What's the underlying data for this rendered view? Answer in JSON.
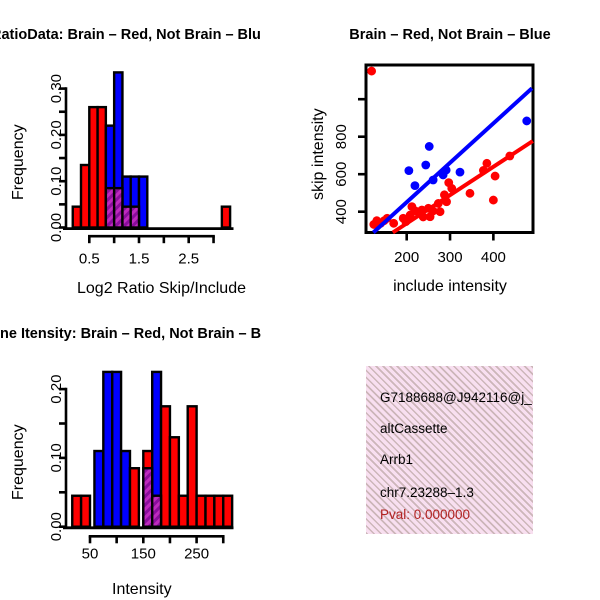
{
  "background": "#FFFFFF",
  "colors": {
    "red": "#FF0000",
    "blue": "#0000FF",
    "black": "#000000",
    "overlap_fill": "#BE29BE",
    "overlap_stripe": "#8A0D9C",
    "pval_red": "#B22222",
    "info_box_bg": "#F8DFF0",
    "info_box_stripe": "#CFC0B6"
  },
  "panels": {
    "info_box": {
      "junction_id": "G7188688@J942116@j_",
      "event_type": "altCassette",
      "gene": "Arrb1",
      "locus": "chr7.23288–1.3",
      "pval": "Pval: 0.000000"
    }
  },
  "chart_data": [
    {
      "id": "ratio_histogram",
      "type": "bar",
      "title": "RatioData: Brain – Red, Not Brain – Blu",
      "xlabel": "Log2 Ratio Skip/Include",
      "ylabel": "Frequency",
      "xlim": [
        0.05,
        3.4
      ],
      "ylim": [
        0,
        0.335
      ],
      "legend": "Brain = red bars, Not Brain = blue bars, overlap = purple hatched",
      "x_ticks": [
        {
          "v": 0.5,
          "label": "0.5"
        },
        {
          "v": 1.0,
          "label": ""
        },
        {
          "v": 1.5,
          "label": "1.5"
        },
        {
          "v": 2.0,
          "label": ""
        },
        {
          "v": 2.5,
          "label": "2.5"
        },
        {
          "v": 3.0,
          "label": ""
        }
      ],
      "y_ticks": [
        {
          "v": 0,
          "label": "0.00"
        },
        {
          "v": 0.05,
          "label": ""
        },
        {
          "v": 0.1,
          "label": "0.10"
        },
        {
          "v": 0.15,
          "label": ""
        },
        {
          "v": 0.2,
          "label": "0.20"
        },
        {
          "v": 0.25,
          "label": ""
        },
        {
          "v": 0.3,
          "label": "0.30"
        }
      ],
      "bars": [
        {
          "x0": 0.167,
          "x1": 0.333,
          "h": 0.045,
          "color": "red"
        },
        {
          "x0": 0.333,
          "x1": 0.5,
          "h": 0.135,
          "color": "red"
        },
        {
          "x0": 0.5,
          "x1": 0.667,
          "h": 0.26,
          "color": "red"
        },
        {
          "x0": 0.667,
          "x1": 0.833,
          "h": 0.26,
          "color": "red"
        },
        {
          "x0": 0.833,
          "x1": 1.0,
          "h": 0.22,
          "color": "blue"
        },
        {
          "x0": 1.0,
          "x1": 1.167,
          "h": 0.335,
          "color": "blue"
        },
        {
          "x0": 1.167,
          "x1": 1.333,
          "h": 0.11,
          "color": "blue"
        },
        {
          "x0": 1.333,
          "x1": 1.5,
          "h": 0.11,
          "color": "blue"
        },
        {
          "x0": 1.5,
          "x1": 1.667,
          "h": 0.11,
          "color": "blue"
        },
        {
          "x0": 3.167,
          "x1": 3.333,
          "h": 0.045,
          "color": "red"
        }
      ],
      "overlap_bars": [
        {
          "x0": 0.833,
          "x1": 1.0,
          "h": 0.085
        },
        {
          "x0": 1.0,
          "x1": 1.167,
          "h": 0.085
        },
        {
          "x0": 1.167,
          "x1": 1.333,
          "h": 0.045
        },
        {
          "x0": 1.333,
          "x1": 1.5,
          "h": 0.045
        }
      ]
    },
    {
      "id": "intensity_scatter",
      "type": "scatter",
      "title": "Brain – Red, Not Brain – Blue",
      "xlabel": "include intensity",
      "ylabel": "skip intensity",
      "xlim": [
        106,
        492
      ],
      "ylim": [
        289,
        1182
      ],
      "x_ticks": [
        {
          "v": 200,
          "label": "200"
        },
        {
          "v": 300,
          "label": "300"
        },
        {
          "v": 400,
          "label": "400"
        }
      ],
      "y_ticks": [
        {
          "v": 400,
          "label": "400"
        },
        {
          "v": 600,
          "label": "600"
        },
        {
          "v": 800,
          "label": "800"
        },
        {
          "v": 1000,
          "label": ""
        }
      ],
      "series": [
        {
          "name": "Brain",
          "color": "red",
          "points": [
            [
              119,
              1150
            ],
            [
              124,
              332
            ],
            [
              131,
              352
            ],
            [
              140,
              338
            ],
            [
              148,
              352
            ],
            [
              155,
              365
            ],
            [
              170,
              338
            ],
            [
              192,
              365
            ],
            [
              198,
              347
            ],
            [
              201,
              356
            ],
            [
              208,
              382
            ],
            [
              212,
              427
            ],
            [
              220,
              404
            ],
            [
              235,
              409
            ],
            [
              238,
              372
            ],
            [
              250,
              418
            ],
            [
              254,
              373
            ],
            [
              261,
              404
            ],
            [
              273,
              444
            ],
            [
              277,
              400
            ],
            [
              287,
              490
            ],
            [
              292,
              453
            ],
            [
              297,
              555
            ],
            [
              304,
              524
            ],
            [
              346,
              498
            ],
            [
              377,
              620
            ],
            [
              385,
              658
            ],
            [
              400,
              462
            ],
            [
              404,
              590
            ],
            [
              438,
              697
            ]
          ]
        },
        {
          "name": "Not Brain",
          "color": "blue",
          "points": [
            [
              205,
              619
            ],
            [
              219,
              539
            ],
            [
              244,
              649
            ],
            [
              252,
              748
            ],
            [
              261,
              569
            ],
            [
              284,
              596
            ],
            [
              291,
              622
            ],
            [
              323,
              611
            ],
            [
              477,
              884
            ]
          ]
        }
      ],
      "fit_lines": [
        {
          "color": "blue",
          "x0": 123,
          "y0": 289,
          "x1": 489,
          "y1": 1058
        },
        {
          "color": "red",
          "x0": 168,
          "y0": 289,
          "x1": 491,
          "y1": 777
        }
      ]
    },
    {
      "id": "intensity_histogram",
      "type": "bar",
      "title": "ne Itensity: Brain – Red, Not Brain – B",
      "xlabel": "Intensity",
      "ylabel": "Frequency",
      "xlim": [
        10,
        320
      ],
      "ylim": [
        0,
        0.235
      ],
      "legend": "Brain = red bars, Not Brain = blue bars, overlap = purple hatched",
      "x_ticks": [
        {
          "v": 50,
          "label": "50"
        },
        {
          "v": 100,
          "label": ""
        },
        {
          "v": 150,
          "label": "150"
        },
        {
          "v": 200,
          "label": ""
        },
        {
          "v": 250,
          "label": "250"
        },
        {
          "v": 300,
          "label": ""
        }
      ],
      "y_ticks": [
        {
          "v": 0,
          "label": "0.00"
        },
        {
          "v": 0.05,
          "label": ""
        },
        {
          "v": 0.1,
          "label": "0.10"
        },
        {
          "v": 0.15,
          "label": ""
        },
        {
          "v": 0.2,
          "label": "0.20"
        }
      ],
      "bars": [
        {
          "x0": 16.7,
          "x1": 33.3,
          "h": 0.045,
          "color": "red"
        },
        {
          "x0": 33.3,
          "x1": 50,
          "h": 0.045,
          "color": "red"
        },
        {
          "x0": 58.3,
          "x1": 75,
          "h": 0.11,
          "color": "blue"
        },
        {
          "x0": 75,
          "x1": 91.7,
          "h": 0.225,
          "color": "blue"
        },
        {
          "x0": 91.7,
          "x1": 108.3,
          "h": 0.225,
          "color": "blue"
        },
        {
          "x0": 108.3,
          "x1": 125,
          "h": 0.11,
          "color": "blue"
        },
        {
          "x0": 125,
          "x1": 141.7,
          "h": 0.085,
          "color": "red"
        },
        {
          "x0": 150,
          "x1": 166.7,
          "h": 0.11,
          "color": "red"
        },
        {
          "x0": 166.7,
          "x1": 183.3,
          "h": 0.225,
          "color": "blue"
        },
        {
          "x0": 183.3,
          "x1": 200,
          "h": 0.175,
          "color": "red"
        },
        {
          "x0": 200,
          "x1": 216.7,
          "h": 0.13,
          "color": "red"
        },
        {
          "x0": 216.7,
          "x1": 233.3,
          "h": 0.045,
          "color": "red"
        },
        {
          "x0": 233.3,
          "x1": 250,
          "h": 0.175,
          "color": "red"
        },
        {
          "x0": 250,
          "x1": 266.7,
          "h": 0.045,
          "color": "red"
        },
        {
          "x0": 266.7,
          "x1": 283.3,
          "h": 0.045,
          "color": "red"
        },
        {
          "x0": 283.3,
          "x1": 300,
          "h": 0.045,
          "color": "red"
        },
        {
          "x0": 300,
          "x1": 316.7,
          "h": 0.045,
          "color": "red"
        }
      ],
      "overlap_bars": [
        {
          "x0": 150,
          "x1": 166.7,
          "h": 0.085
        },
        {
          "x0": 166.7,
          "x1": 183.3,
          "h": 0.045
        }
      ]
    }
  ]
}
